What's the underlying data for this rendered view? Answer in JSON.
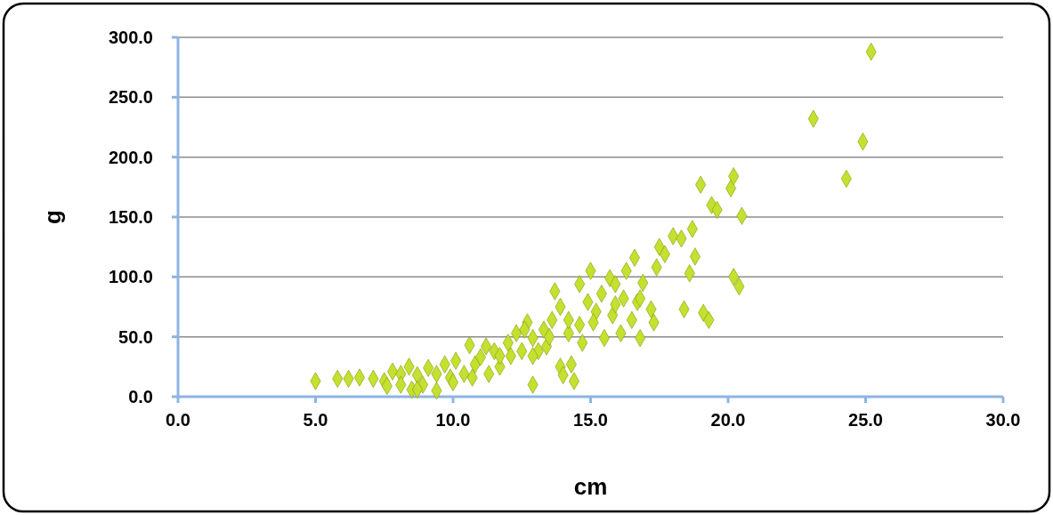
{
  "chart_data": {
    "type": "scatter",
    "xlabel": "cm",
    "ylabel": "g",
    "xlim": [
      0,
      30
    ],
    "ylim": [
      0,
      300
    ],
    "xticks": [
      {
        "value": 0,
        "label": "0.0"
      },
      {
        "value": 5,
        "label": "5.0"
      },
      {
        "value": 10,
        "label": "10.0"
      },
      {
        "value": 15,
        "label": "15.0"
      },
      {
        "value": 20,
        "label": "20.0"
      },
      {
        "value": 25,
        "label": "25.0"
      },
      {
        "value": 30,
        "label": "30.0"
      }
    ],
    "yticks": [
      {
        "value": 0,
        "label": "0.0"
      },
      {
        "value": 50,
        "label": "50.0"
      },
      {
        "value": 100,
        "label": "100.0"
      },
      {
        "value": 150,
        "label": "150.0"
      },
      {
        "value": 200,
        "label": "200.0"
      },
      {
        "value": 250,
        "label": "250.0"
      },
      {
        "value": 300,
        "label": "300.0"
      }
    ],
    "grid": "y",
    "marker": "diamond",
    "series": [
      {
        "color": "#c5e02e",
        "x": [
          5.0,
          5.8,
          6.2,
          6.6,
          7.1,
          7.5,
          7.6,
          7.8,
          8.1,
          8.4,
          8.5,
          8.7,
          8.9,
          9.1,
          9.4,
          9.4,
          9.7,
          9.9,
          10.1,
          10.4,
          10.6,
          10.8,
          11.0,
          11.3,
          11.5,
          11.7,
          12.0,
          12.1,
          12.3,
          12.5,
          12.7,
          12.9,
          12.9,
          13.1,
          13.3,
          13.4,
          13.6,
          13.7,
          13.9,
          13.9,
          14.0,
          14.2,
          14.2,
          14.3,
          14.4,
          14.6,
          14.7,
          14.9,
          15.0,
          15.2,
          15.4,
          15.5,
          15.7,
          15.8,
          15.9,
          16.1,
          16.2,
          16.3,
          16.5,
          16.6,
          16.7,
          16.8,
          16.9,
          17.2,
          17.3,
          17.4,
          17.5,
          17.7,
          18.0,
          18.3,
          18.4,
          18.6,
          18.7,
          18.8,
          19.0,
          19.1,
          19.3,
          19.4,
          19.6,
          20.1,
          20.2,
          20.2,
          20.4,
          20.5,
          23.1,
          24.3,
          24.9,
          25.2,
          8.1,
          8.7,
          10.0,
          10.7,
          11.2,
          11.7,
          12.6,
          12.9,
          13.5,
          14.6,
          15.1,
          15.9,
          16.8
        ],
        "values": [
          13,
          15,
          15,
          16,
          15,
          13,
          9,
          21,
          19,
          25,
          6,
          18,
          10,
          24,
          19,
          5,
          27,
          16,
          30,
          19,
          43,
          27,
          33,
          19,
          38,
          25,
          45,
          34,
          53,
          38,
          62,
          49,
          10,
          38,
          56,
          42,
          64,
          88,
          25,
          75,
          18,
          53,
          64,
          27,
          13,
          94,
          45,
          79,
          105,
          71,
          86,
          49,
          99,
          68,
          94,
          53,
          82,
          105,
          64,
          116,
          79,
          49,
          95,
          73,
          62,
          108,
          125,
          119,
          134,
          132,
          73,
          103,
          140,
          117,
          177,
          70,
          64,
          160,
          156,
          174,
          184,
          100,
          92,
          151,
          232,
          182,
          213,
          288,
          10,
          6,
          12,
          16,
          42,
          34,
          56,
          34,
          50,
          60,
          62,
          77,
          82
        ]
      }
    ]
  }
}
